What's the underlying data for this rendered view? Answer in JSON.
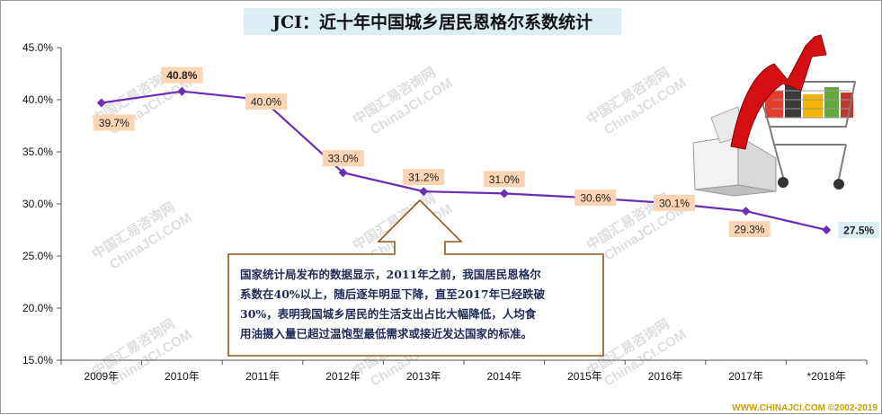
{
  "chart_data": {
    "type": "line",
    "title": "JCI：近十年中国城乡居民恩格尔系数统计",
    "xlabel": "",
    "ylabel": "",
    "categories": [
      "2009年",
      "2010年",
      "2011年",
      "2012年",
      "2013年",
      "2014年",
      "2015年",
      "2016年",
      "2017年",
      "*2018年"
    ],
    "series": [
      {
        "values": [
          39.7,
          40.8,
          40.0,
          33.0,
          31.2,
          31.0,
          30.6,
          30.1,
          29.3,
          27.5
        ]
      }
    ],
    "data_labels": [
      "39.7%",
      "40.8%",
      "40.0%",
      "33.0%",
      "31.2%",
      "31.0%",
      "30.6%",
      "30.1%",
      "29.3%",
      "27.5%"
    ],
    "yticks": [
      "15.0%",
      "20.0%",
      "25.0%",
      "30.0%",
      "35.0%",
      "40.0%",
      "45.0%"
    ],
    "ylim": [
      15,
      45
    ],
    "grid": false,
    "legend": "none",
    "line_color": "#6a2db3",
    "highlight_colors": {
      "max": "#ff0000",
      "last": "#2e74b5"
    },
    "label_bg": "#fbd4b4"
  },
  "annotation": {
    "lines": [
      "国家统计局发布的数据显示，2011年之前，我国居民恩格尔",
      "系数在40%以上，随后逐年明显下降，直至2017年已经跌破",
      "30%，表明我国城乡居民的生活支出占比大幅降低，人均食",
      "用油摄入量已超过温饱型最低需求或接近发达国家的标准。"
    ]
  },
  "watermark": {
    "line1": "中国汇易咨询网",
    "line2": "ChinaJCI.COM"
  },
  "footer": "WWW.CHINAJCI.COM ©2002-2019",
  "illustration": {
    "icon": "shopping-cart-down-arrow-icon"
  }
}
